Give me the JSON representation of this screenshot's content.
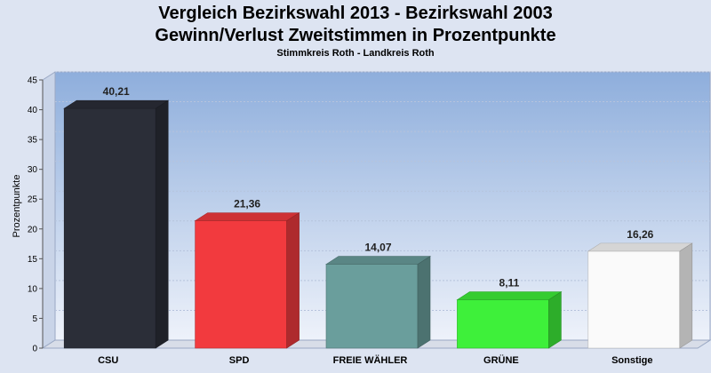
{
  "chart_data": {
    "type": "bar",
    "title": "Vergleich Bezirkswahl 2013 - Bezirkswahl 2003",
    "subtitle": "Gewinn/Verlust Zweitstimmen in Prozentpunkte",
    "subsubtitle": "Stimmkreis Roth - Landkreis Roth",
    "xlabel": "",
    "ylabel": "Prozentpunkte",
    "ylim": [
      0,
      45
    ],
    "yticks": [
      0,
      5,
      10,
      15,
      20,
      25,
      30,
      35,
      40,
      45
    ],
    "grid": true,
    "categories": [
      "CSU",
      "SPD",
      "FREIE WÄHLER",
      "GRÜNE",
      "Sonstige"
    ],
    "values": [
      40.21,
      21.36,
      14.07,
      8.11,
      16.26
    ],
    "value_labels": [
      "40,21",
      "21,36",
      "14,07",
      "8,11",
      "16,26"
    ],
    "colors": [
      "#2b2e38",
      "#f23a3e",
      "#6a9e9c",
      "#3ef03a",
      "#fafafa"
    ]
  }
}
